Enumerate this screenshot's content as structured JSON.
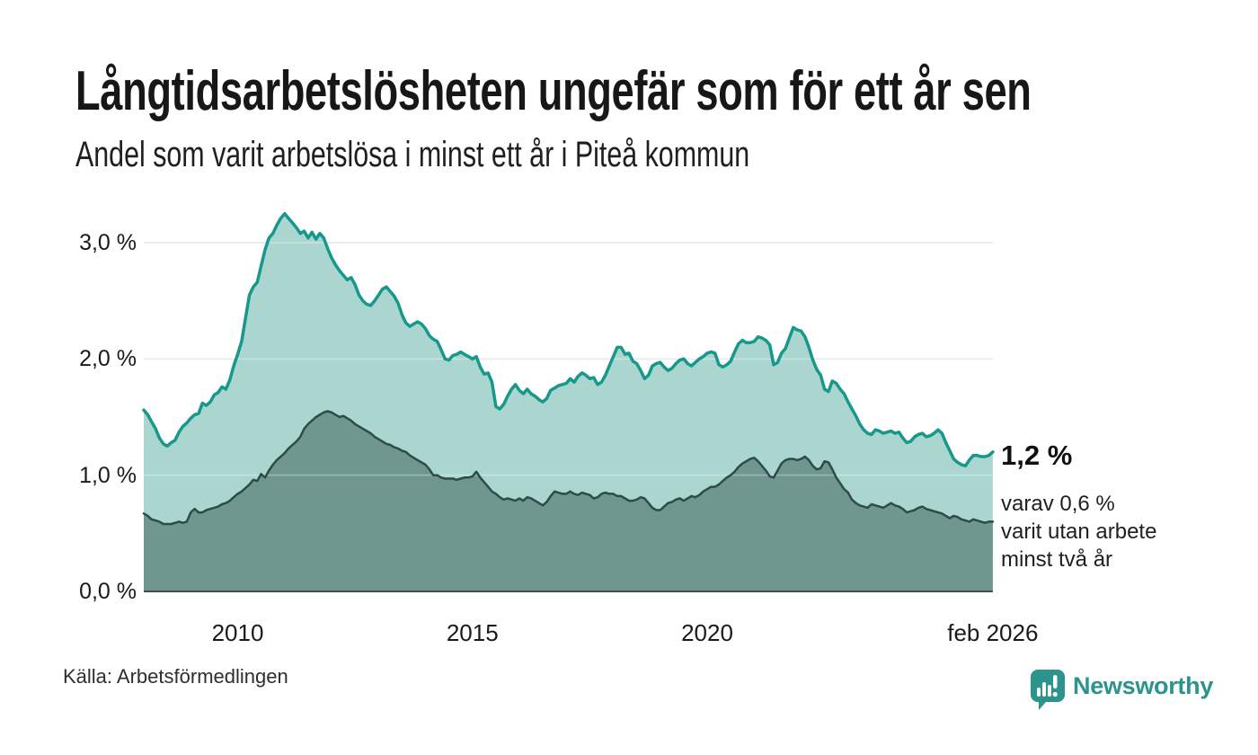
{
  "header": {
    "title": "Långtidsarbetslösheten ungefär som för ett år sen",
    "subtitle": "Andel som varit arbetslösa i minst ett år i Piteå kommun"
  },
  "annotation": {
    "value_label": "1,2 %",
    "detail_lines": [
      "varav 0,6 %",
      "varit utan arbete",
      "minst två år"
    ]
  },
  "source": {
    "label": "Källa: Arbetsförmedlingen"
  },
  "branding": {
    "name": "Newsworthy",
    "logo_icon": "bar-chart-speech-bubble-icon"
  },
  "colors": {
    "background": "#ffffff",
    "text": "#1a1a1a",
    "grid": "#dedede",
    "baseline": "#4a4a4a",
    "line_min_one_year": "#16998c",
    "fill_min_one_year": "#aad6cf",
    "line_min_two_years": "#2e4c47",
    "fill_min_two_years": "#6f968f",
    "brand_teal": "#2c948c"
  },
  "chart_data": {
    "type": "area",
    "mode": "overlay",
    "title": "Långtidsarbetslösheten ungefär som för ett år sen",
    "subtitle": "Andel som varit arbetslösa i minst ett år i Piteå kommun",
    "unit": "%",
    "grid": "horizontal",
    "legend_position": "none",
    "end_labels": {
      "min_one_year": "1,2 %",
      "min_two_years": "0,6 %"
    },
    "x_axis": {
      "min": 2008.0,
      "max": 2026.17,
      "ticks": [
        {
          "value": 2010,
          "label": "2010"
        },
        {
          "value": 2015,
          "label": "2015"
        },
        {
          "value": 2020,
          "label": "2020"
        },
        {
          "value": 2026.083,
          "label": "feb 2026"
        }
      ]
    },
    "y_axis": {
      "min": 0,
      "max": 3.35,
      "gridline_values": [
        1,
        2,
        3
      ],
      "ticks": [
        {
          "value": 0,
          "label": "0,0 %"
        },
        {
          "value": 1,
          "label": "1,0 %"
        },
        {
          "value": 2,
          "label": "2,0 %"
        },
        {
          "value": 3,
          "label": "3,0 %"
        }
      ]
    },
    "series": [
      {
        "name": "Arbetslösa minst ett år",
        "start_year": 2008,
        "start_month": 1,
        "frequency": "monthly",
        "line_color": "#16998c",
        "fill_color": "#aad6cf",
        "line_width": 3.5,
        "values": [
          1.56,
          1.52,
          1.46,
          1.4,
          1.32,
          1.27,
          1.25,
          1.28,
          1.3,
          1.37,
          1.42,
          1.45,
          1.49,
          1.52,
          1.53,
          1.62,
          1.6,
          1.63,
          1.69,
          1.71,
          1.76,
          1.74,
          1.82,
          1.94,
          2.04,
          2.15,
          2.35,
          2.55,
          2.62,
          2.66,
          2.8,
          2.94,
          3.04,
          3.08,
          3.15,
          3.21,
          3.25,
          3.21,
          3.17,
          3.13,
          3.08,
          3.1,
          3.04,
          3.09,
          3.03,
          3.08,
          3.04,
          2.95,
          2.87,
          2.81,
          2.76,
          2.72,
          2.68,
          2.7,
          2.64,
          2.55,
          2.5,
          2.47,
          2.46,
          2.5,
          2.55,
          2.6,
          2.62,
          2.58,
          2.54,
          2.48,
          2.38,
          2.31,
          2.28,
          2.3,
          2.32,
          2.3,
          2.26,
          2.2,
          2.17,
          2.15,
          2.08,
          2.0,
          1.99,
          2.03,
          2.04,
          2.06,
          2.04,
          2.02,
          2.0,
          2.02,
          1.93,
          1.87,
          1.88,
          1.8,
          1.59,
          1.57,
          1.61,
          1.68,
          1.74,
          1.78,
          1.73,
          1.7,
          1.74,
          1.7,
          1.68,
          1.65,
          1.63,
          1.66,
          1.73,
          1.75,
          1.77,
          1.78,
          1.79,
          1.83,
          1.8,
          1.85,
          1.88,
          1.86,
          1.83,
          1.84,
          1.78,
          1.8,
          1.86,
          1.94,
          2.02,
          2.1,
          2.1,
          2.04,
          2.05,
          1.98,
          1.96,
          1.9,
          1.83,
          1.86,
          1.94,
          1.96,
          1.97,
          1.93,
          1.9,
          1.92,
          1.96,
          1.99,
          2.0,
          1.96,
          1.94,
          1.97,
          2.0,
          2.02,
          2.05,
          2.06,
          2.05,
          1.95,
          1.93,
          1.95,
          1.98,
          2.06,
          2.13,
          2.16,
          2.14,
          2.14,
          2.15,
          2.19,
          2.18,
          2.16,
          2.12,
          1.95,
          1.97,
          2.05,
          2.09,
          2.18,
          2.27,
          2.25,
          2.24,
          2.19,
          2.1,
          1.99,
          1.91,
          1.86,
          1.74,
          1.72,
          1.81,
          1.79,
          1.74,
          1.7,
          1.63,
          1.57,
          1.51,
          1.44,
          1.39,
          1.36,
          1.35,
          1.39,
          1.38,
          1.36,
          1.37,
          1.38,
          1.36,
          1.37,
          1.32,
          1.28,
          1.29,
          1.33,
          1.35,
          1.36,
          1.33,
          1.34,
          1.36,
          1.39,
          1.36,
          1.28,
          1.21,
          1.14,
          1.11,
          1.09,
          1.08,
          1.13,
          1.17,
          1.17,
          1.16,
          1.16,
          1.17,
          1.2
        ]
      },
      {
        "name": "Utan arbete minst två år",
        "start_year": 2008,
        "start_month": 1,
        "frequency": "monthly",
        "line_color": "#2e4c47",
        "fill_color": "#6f968f",
        "line_width": 2.5,
        "values": [
          0.67,
          0.65,
          0.62,
          0.61,
          0.6,
          0.58,
          0.58,
          0.58,
          0.59,
          0.6,
          0.59,
          0.6,
          0.68,
          0.71,
          0.68,
          0.68,
          0.7,
          0.71,
          0.72,
          0.73,
          0.75,
          0.76,
          0.78,
          0.81,
          0.84,
          0.86,
          0.89,
          0.92,
          0.96,
          0.95,
          1.01,
          0.98,
          1.04,
          1.09,
          1.13,
          1.16,
          1.19,
          1.23,
          1.26,
          1.29,
          1.33,
          1.4,
          1.44,
          1.47,
          1.5,
          1.52,
          1.54,
          1.55,
          1.54,
          1.52,
          1.5,
          1.51,
          1.49,
          1.47,
          1.44,
          1.42,
          1.4,
          1.38,
          1.36,
          1.33,
          1.31,
          1.29,
          1.27,
          1.26,
          1.24,
          1.23,
          1.21,
          1.2,
          1.17,
          1.15,
          1.13,
          1.11,
          1.09,
          1.05,
          1.0,
          1.0,
          0.98,
          0.97,
          0.97,
          0.97,
          0.96,
          0.97,
          0.98,
          0.98,
          0.99,
          1.03,
          0.98,
          0.94,
          0.9,
          0.86,
          0.84,
          0.81,
          0.79,
          0.8,
          0.79,
          0.78,
          0.8,
          0.78,
          0.81,
          0.8,
          0.78,
          0.76,
          0.74,
          0.77,
          0.82,
          0.86,
          0.85,
          0.84,
          0.84,
          0.86,
          0.84,
          0.83,
          0.85,
          0.84,
          0.83,
          0.8,
          0.81,
          0.84,
          0.85,
          0.84,
          0.84,
          0.82,
          0.82,
          0.8,
          0.78,
          0.78,
          0.79,
          0.81,
          0.8,
          0.76,
          0.72,
          0.7,
          0.7,
          0.73,
          0.76,
          0.77,
          0.79,
          0.8,
          0.78,
          0.8,
          0.82,
          0.81,
          0.83,
          0.86,
          0.88,
          0.9,
          0.9,
          0.92,
          0.95,
          0.98,
          1.0,
          1.03,
          1.07,
          1.1,
          1.12,
          1.14,
          1.15,
          1.12,
          1.08,
          1.04,
          0.99,
          0.98,
          1.04,
          1.1,
          1.13,
          1.14,
          1.14,
          1.13,
          1.14,
          1.16,
          1.13,
          1.08,
          1.05,
          1.06,
          1.12,
          1.11,
          1.05,
          0.98,
          0.93,
          0.88,
          0.85,
          0.79,
          0.76,
          0.74,
          0.73,
          0.72,
          0.75,
          0.74,
          0.73,
          0.72,
          0.74,
          0.76,
          0.74,
          0.73,
          0.71,
          0.68,
          0.69,
          0.7,
          0.72,
          0.73,
          0.71,
          0.7,
          0.69,
          0.68,
          0.67,
          0.65,
          0.63,
          0.65,
          0.64,
          0.62,
          0.61,
          0.6,
          0.62,
          0.61,
          0.6,
          0.59,
          0.6,
          0.6
        ]
      }
    ]
  }
}
